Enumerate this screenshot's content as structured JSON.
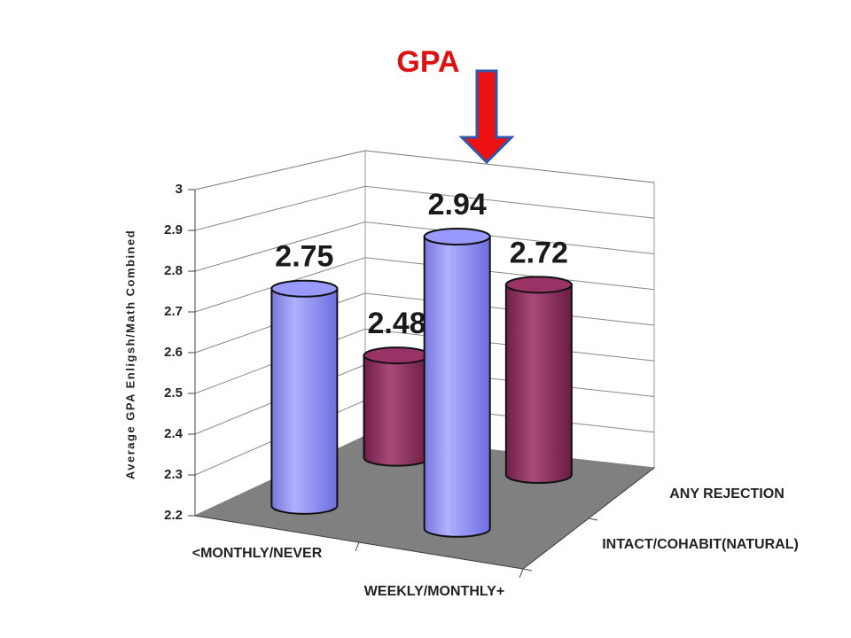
{
  "chart_data": {
    "type": "bar3d",
    "title": "GPA",
    "y_label": "Average GPA Enligsh/Math Combined",
    "categories": [
      "<MONTHLY/NEVER",
      "WEEKLY/MONTHLY+"
    ],
    "series": [
      {
        "name": "INTACT/COHABIT(NATURAL)",
        "color": "#9999ff",
        "values": [
          2.75,
          2.94
        ]
      },
      {
        "name": "ANY REJECTION",
        "color": "#993366",
        "values": [
          2.48,
          2.72
        ]
      }
    ],
    "ylim": [
      2.2,
      3
    ],
    "yticks": [
      2.2,
      2.3,
      2.4,
      2.5,
      2.6,
      2.7,
      2.8,
      2.9,
      3
    ],
    "grid": true
  }
}
